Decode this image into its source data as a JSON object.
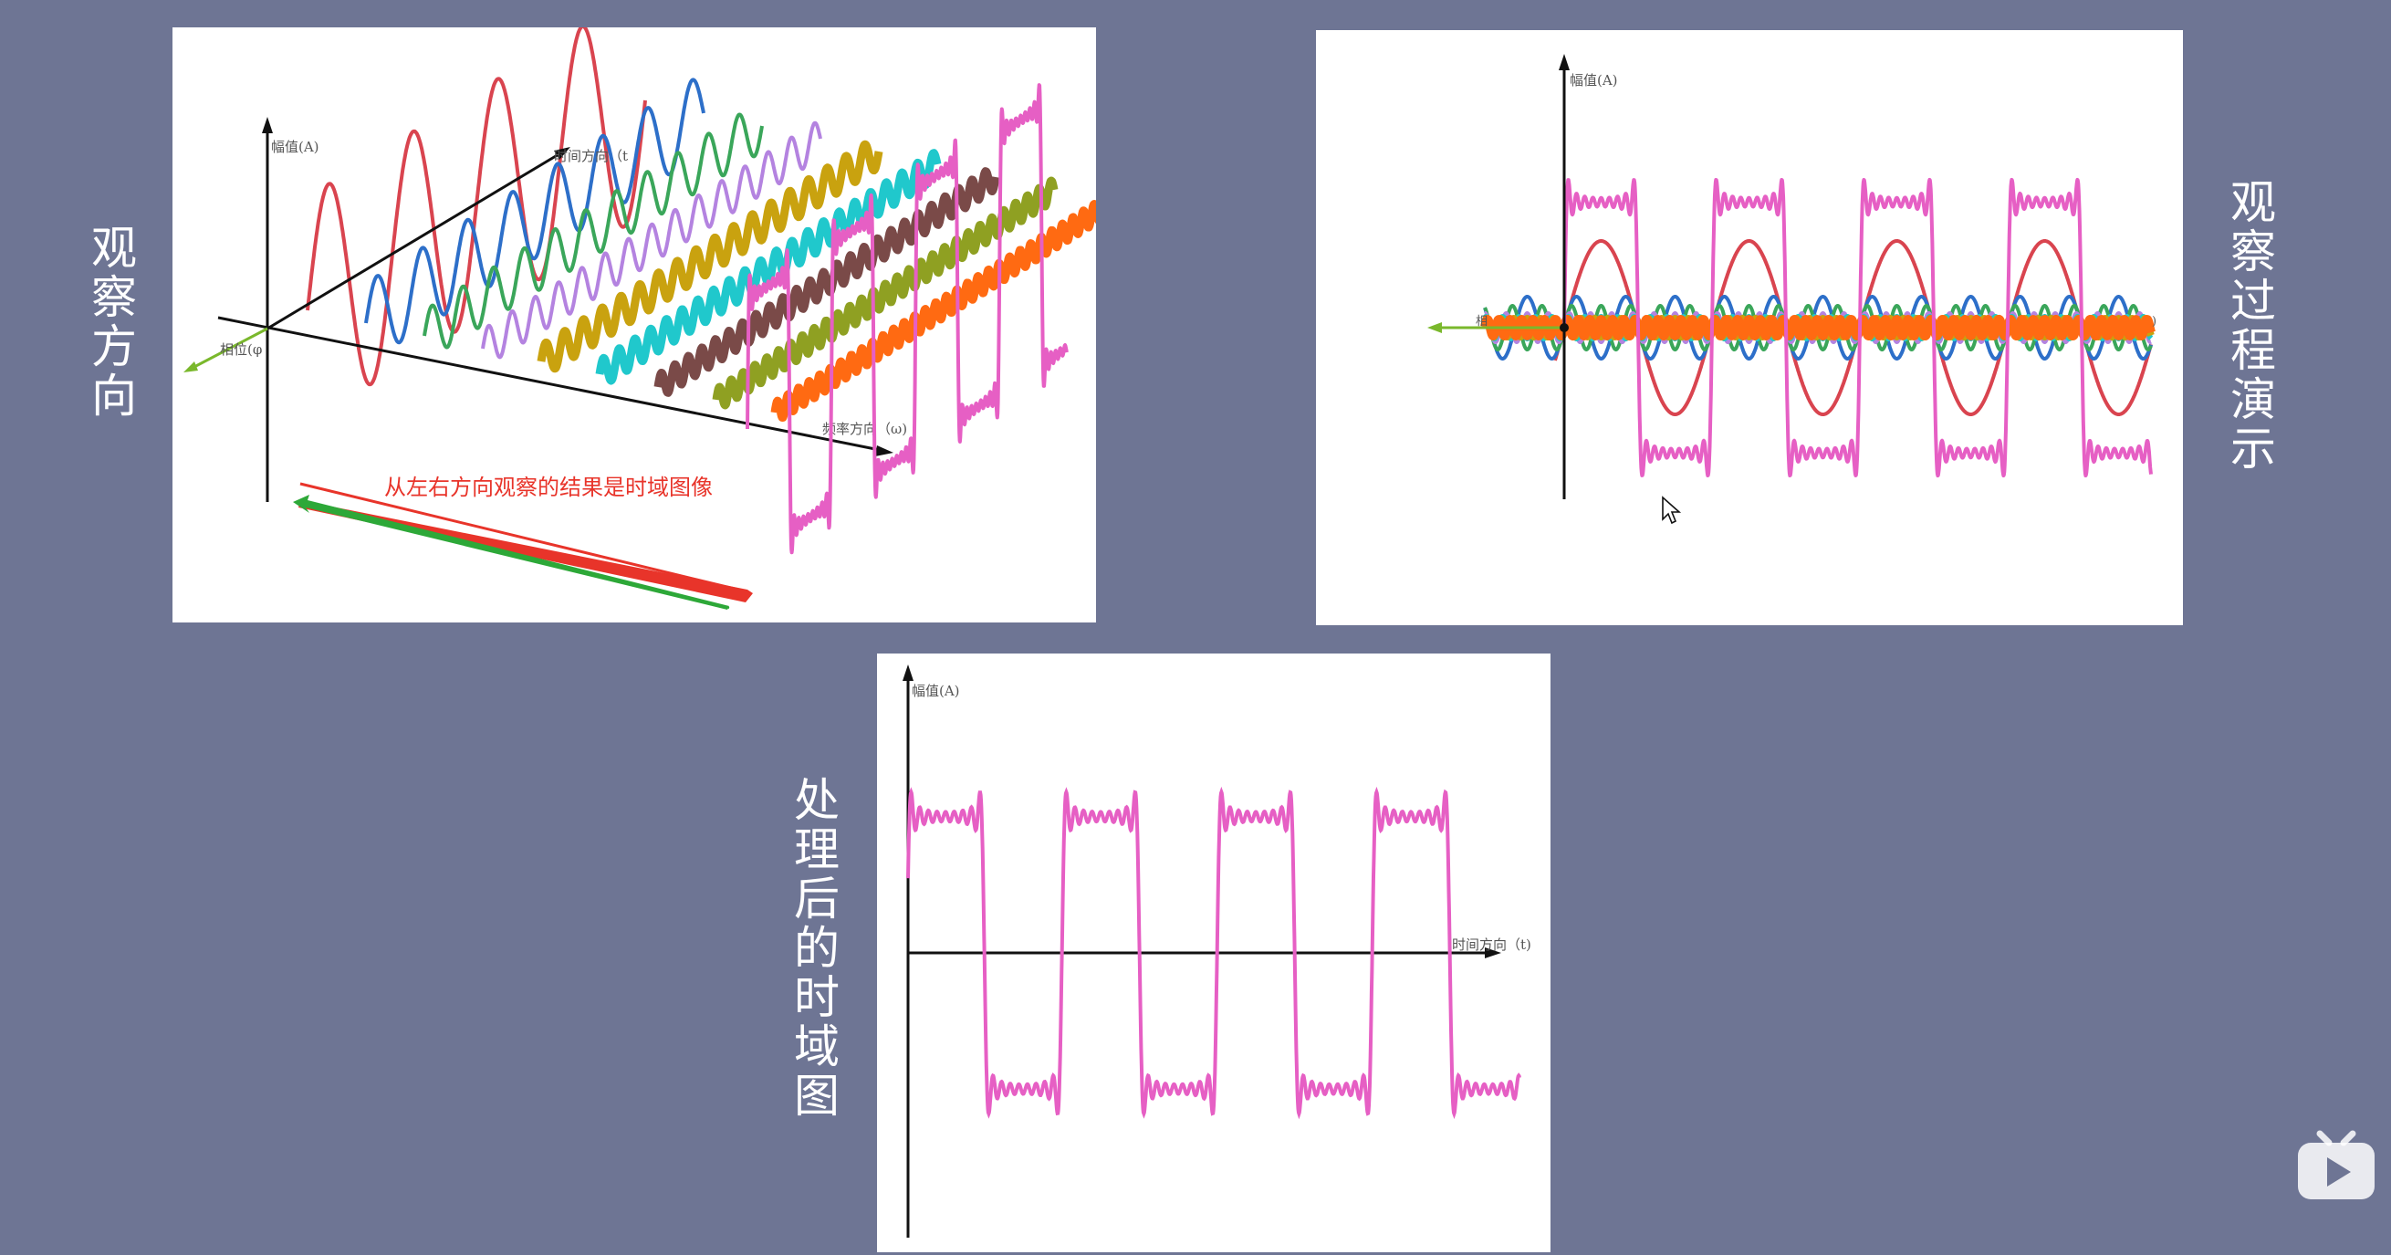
{
  "labels": {
    "observe_direction": "观察方向",
    "observe_process": "观察过程演示",
    "processed_time_domain": "处理后的时域图"
  },
  "panel_3d": {
    "axis_amplitude": "幅值(A)",
    "axis_time": "时间方向（t",
    "axis_phase": "相位(φ",
    "axis_frequency": "频率方向（ω)",
    "caption": "从左右方向观察的结果是时域图像"
  },
  "panel_projection": {
    "axis_amplitude": "幅值(A)",
    "axis_phase": "相",
    "axis_time_end": ")"
  },
  "panel_time": {
    "axis_amplitude": "幅值(A)",
    "axis_time": "时间方向（t)"
  },
  "colors": {
    "background": "#6e7594",
    "signal": "#e65fc4",
    "h1": "#d9444f",
    "h2": "#2d6fc9",
    "h3": "#3aa65a",
    "h4": "#b483e0",
    "h5": "#c9a20f",
    "h6": "#20c8cc",
    "h7": "#7a4a48",
    "h8": "#8fa022",
    "h9": "#ff6a12",
    "arrow_red": "#e8342a",
    "arrow_green": "#2da838"
  },
  "icons": {
    "cursor": "mouse-cursor-icon",
    "logo": "bilibili-tv-icon"
  }
}
